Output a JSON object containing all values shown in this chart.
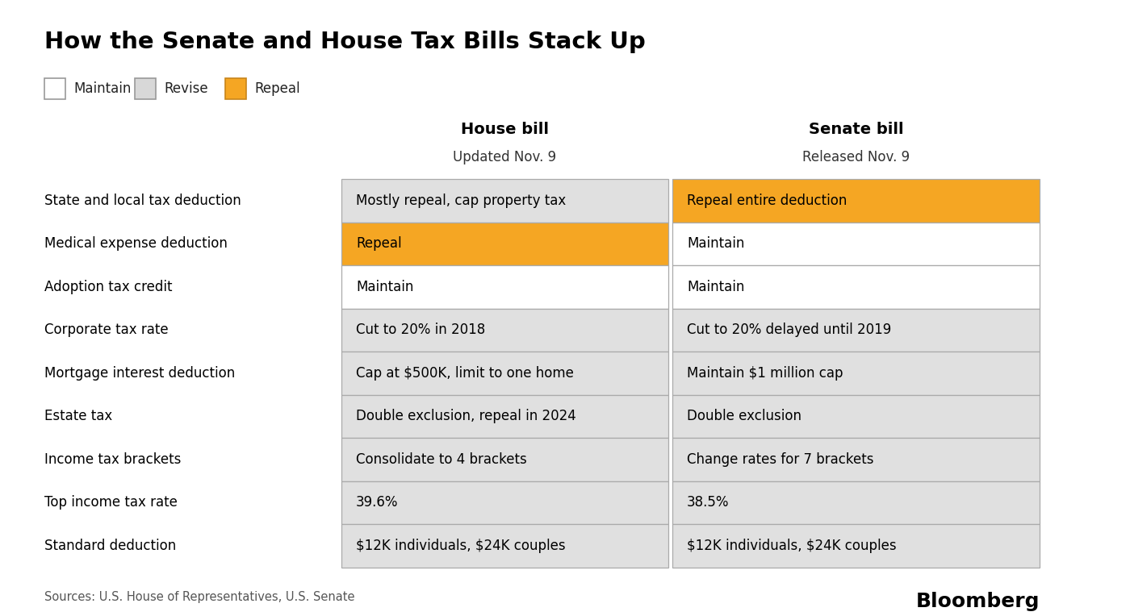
{
  "title": "How the Senate and House Tax Bills Stack Up",
  "background_color": "#ffffff",
  "title_fontsize": 21,
  "legend_items": [
    {
      "label": "Maintain",
      "color": "#ffffff",
      "edge": "#999999"
    },
    {
      "label": "Revise",
      "color": "#d8d8d8",
      "edge": "#999999"
    },
    {
      "label": "Repeal",
      "color": "#f5a623",
      "edge": "#c8851a"
    }
  ],
  "col1_header": "House bill",
  "col1_subheader": "Updated Nov. 9",
  "col2_header": "Senate bill",
  "col2_subheader": "Released Nov. 9",
  "rows": [
    {
      "label": "State and local tax deduction",
      "house_text": "Mostly repeal, cap property tax",
      "house_color": "#e0e0e0",
      "senate_text": "Repeal entire deduction",
      "senate_color": "#f5a623"
    },
    {
      "label": "Medical expense deduction",
      "house_text": "Repeal",
      "house_color": "#f5a623",
      "senate_text": "Maintain",
      "senate_color": "#ffffff"
    },
    {
      "label": "Adoption tax credit",
      "house_text": "Maintain",
      "house_color": "#ffffff",
      "senate_text": "Maintain",
      "senate_color": "#ffffff"
    },
    {
      "label": "Corporate tax rate",
      "house_text": "Cut to 20% in 2018",
      "house_color": "#e0e0e0",
      "senate_text": "Cut to 20% delayed until 2019",
      "senate_color": "#e0e0e0"
    },
    {
      "label": "Mortgage interest deduction",
      "house_text": "Cap at $500K, limit to one home",
      "house_color": "#e0e0e0",
      "senate_text": "Maintain $1 million cap",
      "senate_color": "#e0e0e0"
    },
    {
      "label": "Estate tax",
      "house_text": "Double exclusion, repeal in 2024",
      "house_color": "#e0e0e0",
      "senate_text": "Double exclusion",
      "senate_color": "#e0e0e0"
    },
    {
      "label": "Income tax brackets",
      "house_text": "Consolidate to 4 brackets",
      "house_color": "#e0e0e0",
      "senate_text": "Change rates for 7 brackets",
      "senate_color": "#e0e0e0"
    },
    {
      "label": "Top income tax rate",
      "house_text": "39.6%",
      "house_color": "#e0e0e0",
      "senate_text": "38.5%",
      "senate_color": "#e0e0e0"
    },
    {
      "label": "Standard deduction",
      "house_text": "\\$12K individuals, \\$24K couples",
      "house_color": "#e0e0e0",
      "senate_text": "\\$12K individuals, \\$24K couples",
      "senate_color": "#e0e0e0"
    }
  ],
  "source_text": "Sources: U.S. House of Representatives, U.S. Senate",
  "bloomberg_text": "Bloomberg",
  "fig_width": 14.0,
  "fig_height": 7.64,
  "dpi": 100
}
